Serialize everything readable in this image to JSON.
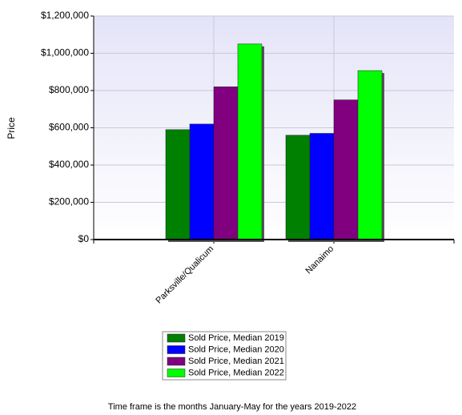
{
  "chart_data": {
    "type": "bar",
    "categories": [
      "Parksville/Qualicum",
      "Nanaimo"
    ],
    "series": [
      {
        "name": "Sold Price, Median 2019",
        "color": "#008000",
        "values": [
          590000,
          560000
        ]
      },
      {
        "name": "Sold Price, Median 2020",
        "color": "#0000ff",
        "values": [
          620000,
          570000
        ]
      },
      {
        "name": "Sold Price, Median 2021",
        "color": "#800080",
        "values": [
          820000,
          750000
        ]
      },
      {
        "name": "Sold Price, Median 2022",
        "color": "#00ff00",
        "values": [
          1050000,
          907000
        ]
      }
    ],
    "y_label": "Price",
    "ylim": [
      0,
      1200000
    ],
    "yticks": [
      {
        "value": 0,
        "label": "$0"
      },
      {
        "value": 200000,
        "label": "$200,000"
      },
      {
        "value": 400000,
        "label": "$400,000"
      },
      {
        "value": 600000,
        "label": "$600,000"
      },
      {
        "value": 800000,
        "label": "$800,000"
      },
      {
        "value": 1000000,
        "label": "$1,000,000"
      },
      {
        "value": 1200000,
        "label": "$1,200,000"
      }
    ],
    "grid": true,
    "note": "Time frame is the months January-May for the years 2019-2022"
  }
}
